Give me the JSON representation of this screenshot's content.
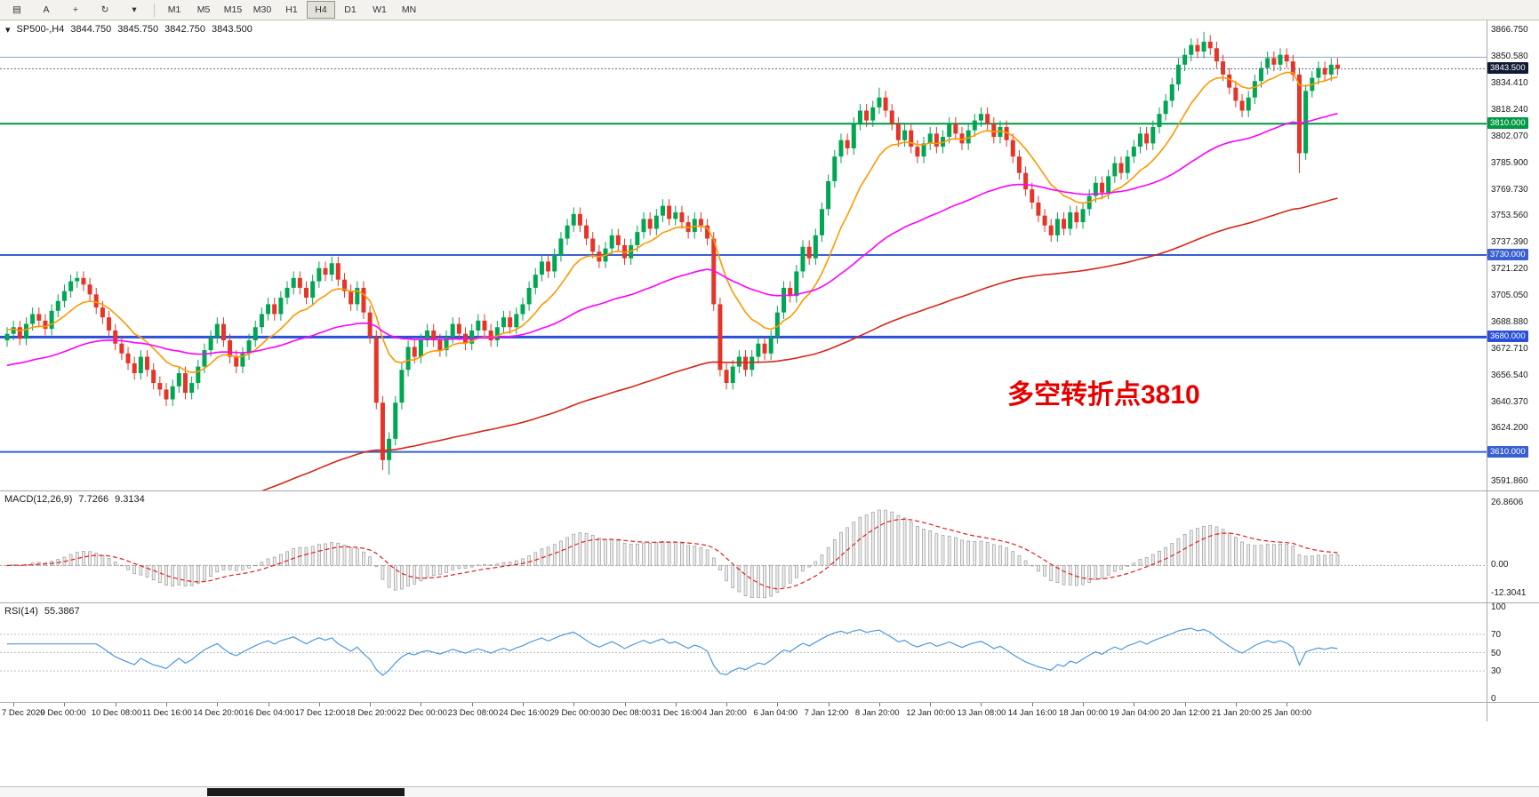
{
  "toolbar": {
    "icons": [
      {
        "name": "chart-window-icon",
        "glyph": "▤"
      },
      {
        "name": "cursor-tool-button",
        "glyph": "A"
      },
      {
        "name": "crosshair-tool-button",
        "glyph": "+"
      },
      {
        "name": "cycle-symbols-button",
        "glyph": "↻"
      },
      {
        "name": "dropdown-caret-icon",
        "glyph": "▾"
      }
    ],
    "timeframes": [
      "M1",
      "M5",
      "M15",
      "M30",
      "H1",
      "H4",
      "D1",
      "W1",
      "MN"
    ],
    "active_timeframe": "H4"
  },
  "chart_header": {
    "collapse_icon": "▾",
    "symbol": "SP500-,H4",
    "open": "3844.750",
    "high": "3845.750",
    "low": "3842.750",
    "close": "3843.500"
  },
  "annotation": {
    "text": "多空转折点3810",
    "color": "#e60000"
  },
  "chart_data": {
    "type": "candlestick",
    "symbol": "SP500-",
    "timeframe": "H4",
    "y_axis_labels": [
      "3866.750",
      "3850.580",
      "3834.410",
      "3818.240",
      "3802.070",
      "3785.900",
      "3769.730",
      "3753.560",
      "3737.390",
      "3721.220",
      "3705.050",
      "3688.880",
      "3672.710",
      "3656.540",
      "3640.370",
      "3624.200",
      "3608.030",
      "3591.860"
    ],
    "x_labels": [
      "7 Dec 2020",
      "9 Dec 00:00",
      "10 Dec 08:00",
      "11 Dec 16:00",
      "14 Dec 20:00",
      "16 Dec 04:00",
      "17 Dec 12:00",
      "18 Dec 20:00",
      "22 Dec 00:00",
      "23 Dec 08:00",
      "24 Dec 16:00",
      "29 Dec 00:00",
      "30 Dec 08:00",
      "31 Dec 16:00",
      "4 Jan 20:00",
      "6 Jan 04:00",
      "7 Jan 12:00",
      "8 Jan 20:00",
      "12 Jan 00:00",
      "13 Jan 08:00",
      "14 Jan 16:00",
      "18 Jan 00:00",
      "19 Jan 04:00",
      "20 Jan 12:00",
      "21 Jan 20:00",
      "25 Jan 00:00"
    ],
    "bars_per_label": 8,
    "first_label_bar": 1,
    "first_open": 3678,
    "default_wick": 4,
    "closes": [
      3682,
      3686,
      3679,
      3688,
      3694,
      3690,
      3685,
      3696,
      3702,
      3708,
      3714,
      3716,
      3712,
      3706,
      3698,
      3692,
      3684,
      3676,
      3670,
      3664,
      3658,
      3668,
      3660,
      3652,
      3648,
      3642,
      3650,
      3658,
      3646,
      3652,
      3662,
      3672,
      3680,
      3688,
      3678,
      3668,
      3662,
      3670,
      3678,
      3686,
      3694,
      3700,
      3694,
      3704,
      3710,
      3716,
      3710,
      3704,
      3714,
      3722,
      3718,
      3725,
      3715,
      3708,
      3700,
      3710,
      3695,
      3680,
      3640,
      3605,
      3618,
      3640,
      3660,
      3674,
      3668,
      3678,
      3684,
      3678,
      3672,
      3680,
      3688,
      3682,
      3676,
      3684,
      3690,
      3684,
      3678,
      3686,
      3692,
      3686,
      3694,
      3700,
      3710,
      3718,
      3726,
      3720,
      3730,
      3740,
      3748,
      3755,
      3748,
      3740,
      3732,
      3726,
      3734,
      3742,
      3736,
      3728,
      3736,
      3744,
      3752,
      3746,
      3754,
      3760,
      3752,
      3756,
      3750,
      3744,
      3752,
      3748,
      3740,
      3700,
      3660,
      3652,
      3662,
      3668,
      3660,
      3668,
      3676,
      3670,
      3680,
      3695,
      3710,
      3705,
      3720,
      3735,
      3728,
      3742,
      3758,
      3775,
      3790,
      3800,
      3795,
      3810,
      3818,
      3812,
      3820,
      3826,
      3818,
      3810,
      3800,
      3806,
      3796,
      3790,
      3798,
      3804,
      3796,
      3802,
      3810,
      3804,
      3798,
      3806,
      3812,
      3816,
      3810,
      3802,
      3808,
      3800,
      3790,
      3780,
      3770,
      3762,
      3754,
      3748,
      3742,
      3752,
      3746,
      3756,
      3750,
      3758,
      3766,
      3774,
      3768,
      3778,
      3786,
      3780,
      3790,
      3796,
      3804,
      3798,
      3808,
      3816,
      3824,
      3834,
      3846,
      3852,
      3858,
      3854,
      3860,
      3856,
      3848,
      3840,
      3832,
      3824,
      3818,
      3826,
      3836,
      3844,
      3850,
      3846,
      3852,
      3848,
      3840,
      3792,
      3830,
      3838,
      3844,
      3840,
      3846,
      3843.5
    ],
    "wick_overrides": {
      "59": {
        "low": 3599
      },
      "60": {
        "low": 3596
      },
      "137": {
        "high": 3832
      },
      "188": {
        "high": 3866
      },
      "203": {
        "low": 3780
      }
    },
    "up_color": "#00a651",
    "down_color": "#e53528",
    "y_range": {
      "top": 3873.5,
      "bottom": 3586.5
    },
    "moving_averages": [
      {
        "name": "fast",
        "color": "#ff9800",
        "period": 12,
        "seed": 3685
      },
      {
        "name": "mid",
        "color": "#ff00ff",
        "period": 55,
        "seed": 3662
      },
      {
        "name": "slow",
        "color": "#d62718",
        "period": 150,
        "seed": 3520
      }
    ],
    "hlines": [
      {
        "price": 3850.58,
        "color": "#8fa4bf",
        "width": 1,
        "label": null
      },
      {
        "price": 3810,
        "color": "#009944",
        "width": 2,
        "label": "3810.000"
      },
      {
        "price": 3730,
        "color": "#3a5fd0",
        "width": 2,
        "label": "3730.000"
      },
      {
        "price": 3680,
        "color": "#2a50d8",
        "width": 3,
        "label": "3680.000"
      },
      {
        "price": 3610,
        "color": "#3a5fd0",
        "width": 2,
        "label": "3610.000"
      }
    ],
    "current_price": {
      "value": 3843.5,
      "label": "3843.500",
      "bg": "#101a33"
    }
  },
  "macd_panel": {
    "title": "MACD(12,26,9)",
    "value1": "7.7266",
    "value2": "9.3134",
    "fast": 12,
    "slow": 26,
    "signal": 9,
    "axis_labels": [
      "26.8606",
      "0.00",
      "-12.3041"
    ],
    "value_range": {
      "top": 32,
      "bottom": -16
    },
    "hist_fill": "#ededed",
    "hist_stroke": "#9a9a9a",
    "signal_color": "#e02020"
  },
  "rsi_panel": {
    "title": "RSI(14)",
    "value": "55.3867",
    "period": 14,
    "axis_labels": [
      "100",
      "70",
      "50",
      "30",
      "0"
    ],
    "levels": [
      70,
      50,
      30
    ],
    "line_color": "#4f97dd"
  },
  "scrollbar": {
    "thumb_left": 233,
    "thumb_width": 222
  }
}
